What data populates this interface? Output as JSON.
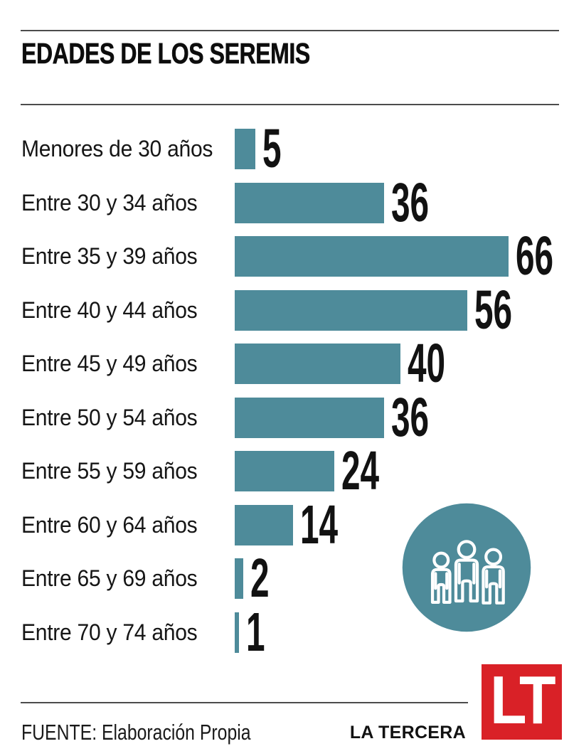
{
  "chart_data": {
    "type": "bar",
    "orientation": "horizontal",
    "title": "EDADES DE LOS SEREMIS",
    "categories": [
      "Menores de 30 años",
      "Entre 30 y 34 años",
      "Entre 35 y 39 años",
      "Entre 40 y 44 años",
      "Entre 45 y 49 años",
      "Entre 50 y 54 años",
      "Entre 55 y 59 años",
      "Entre 60 y 64 años",
      "Entre 65 y 69 años",
      "Entre 70 y 74 años"
    ],
    "values": [
      5,
      36,
      66,
      56,
      40,
      36,
      24,
      14,
      2,
      1
    ],
    "xlim": [
      0,
      66
    ],
    "grid": false,
    "value_label_position": "end",
    "bar_color": "#4e8b9a",
    "value_label_color": "#121212"
  },
  "graphic": {
    "icon": "people-group-icon",
    "circle_color": "#4e8b9a",
    "figure_color": "#ffffff"
  },
  "footer": {
    "source": "FUENTE: Elaboración Propia",
    "brand": "LA TERCERA",
    "logo_text": "LT",
    "logo_color": "#d92127",
    "logo_text_color": "#ffffff"
  }
}
